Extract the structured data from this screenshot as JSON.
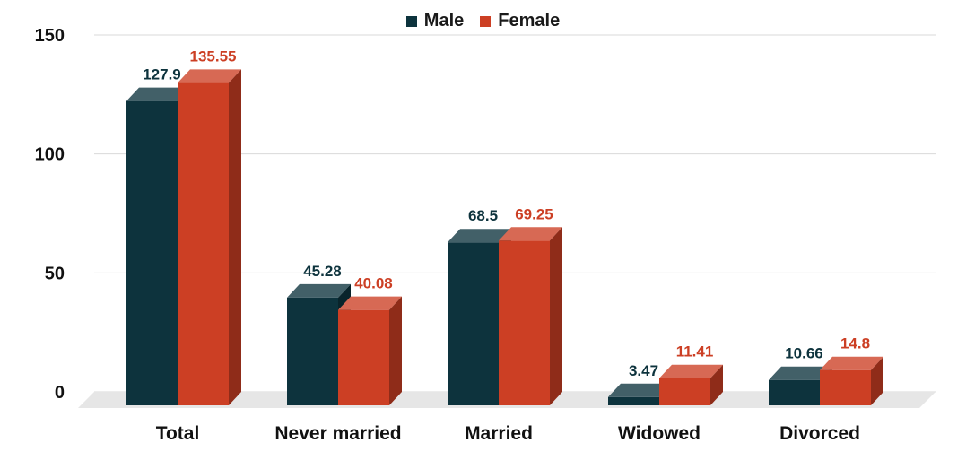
{
  "chart_data": {
    "type": "bar",
    "categories": [
      "Total",
      "Never married",
      "Married",
      "Widowed",
      "Divorced"
    ],
    "series": [
      {
        "name": "Male",
        "values": [
          127.9,
          45.28,
          68.5,
          3.47,
          10.66
        ],
        "color": "#0d333d",
        "label_color": "#0d333d"
      },
      {
        "name": "Female",
        "values": [
          135.55,
          40.08,
          69.25,
          11.41,
          14.8
        ],
        "color": "#cc3f24",
        "label_color": "#cc3f24"
      }
    ],
    "y_ticks": [
      "0",
      "50",
      "100",
      "150"
    ],
    "ylim": [
      0,
      150
    ],
    "grid": true,
    "legend_position": "top-center",
    "title": "",
    "xlabel": "",
    "ylabel": ""
  }
}
